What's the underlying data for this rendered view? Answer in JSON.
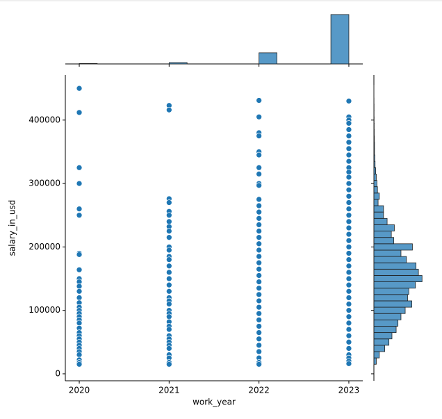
{
  "chart_data": {
    "type": "scatter",
    "x_label": "work_year",
    "y_label": "salary_in_usd",
    "color": "#1f77b4",
    "xlim": [
      2019.845,
      2023.155
    ],
    "xticks": [
      2020,
      2021,
      2022,
      2023
    ],
    "ylim": [
      -11000,
      471000
    ],
    "yticks": [
      0,
      100000,
      200000,
      300000,
      400000
    ],
    "groups": [
      {
        "x": 2020,
        "values": [
          450000,
          412000,
          325000,
          300000,
          260000,
          250000,
          190000,
          188000,
          164000,
          150000,
          145000,
          138000,
          130000,
          120000,
          112000,
          105000,
          100000,
          95000,
          90000,
          85000,
          80000,
          72000,
          65000,
          60000,
          55000,
          50000,
          45000,
          40000,
          35000,
          30000,
          22000,
          18000,
          15000
        ]
      },
      {
        "x": 2021,
        "values": [
          423000,
          416000,
          276000,
          270000,
          256000,
          250000,
          240000,
          232000,
          225000,
          215000,
          200000,
          195000,
          185000,
          180000,
          170000,
          160000,
          150000,
          140000,
          130000,
          120000,
          115000,
          110000,
          100000,
          95000,
          90000,
          82000,
          75000,
          70000,
          60000,
          55000,
          50000,
          45000,
          40000,
          30000,
          25000,
          18000,
          15000
        ]
      },
      {
        "x": 2022,
        "values": [
          431000,
          405000,
          380000,
          375000,
          350000,
          345000,
          325000,
          315000,
          300000,
          297000,
          275000,
          265000,
          255000,
          245000,
          235000,
          225000,
          215000,
          205000,
          195000,
          185000,
          175000,
          165000,
          155000,
          145000,
          135000,
          125000,
          115000,
          105000,
          95000,
          85000,
          75000,
          65000,
          55000,
          45000,
          35000,
          25000,
          18000,
          15000
        ]
      },
      {
        "x": 2023,
        "values": [
          430000,
          405000,
          400000,
          395000,
          385000,
          375000,
          365000,
          355000,
          345000,
          335000,
          325000,
          318000,
          310000,
          300000,
          290000,
          280000,
          270000,
          260000,
          250000,
          240000,
          230000,
          220000,
          210000,
          200000,
          190000,
          180000,
          170000,
          160000,
          150000,
          140000,
          130000,
          120000,
          110000,
          100000,
          90000,
          80000,
          70000,
          60000,
          50000,
          40000,
          30000,
          25000,
          20000,
          16000
        ]
      }
    ],
    "top_histogram": {
      "bins": [
        2020,
        2020.2,
        2020.4,
        2020.6,
        2020.8,
        2021,
        2021.2,
        2021.4,
        2021.6,
        2021.8,
        2022,
        2022.2,
        2022.4,
        2022.6,
        2022.8,
        2023
      ],
      "counts": [
        70,
        0,
        0,
        0,
        0,
        200,
        0,
        0,
        0,
        0,
        1650,
        0,
        0,
        0,
        7300
      ],
      "ylim": [
        0,
        7700
      ]
    },
    "right_histogram": {
      "bins": [
        15000,
        25000,
        35000,
        45000,
        55000,
        65000,
        75000,
        85000,
        95000,
        105000,
        115000,
        125000,
        135000,
        145000,
        155000,
        165000,
        175000,
        185000,
        195000,
        205000,
        215000,
        225000,
        235000,
        245000,
        255000,
        265000,
        275000,
        285000,
        295000,
        305000,
        315000,
        325000,
        335000,
        345000,
        355000,
        365000,
        375000,
        385000,
        395000,
        405000,
        415000,
        425000,
        435000,
        445000,
        455000
      ],
      "counts": [
        40,
        90,
        180,
        250,
        300,
        370,
        400,
        450,
        520,
        630,
        560,
        580,
        690,
        800,
        740,
        700,
        540,
        450,
        640,
        330,
        290,
        340,
        220,
        160,
        160,
        70,
        90,
        60,
        50,
        40,
        30,
        20,
        15,
        10,
        10,
        8,
        6,
        5,
        4,
        3,
        3,
        2,
        1,
        1
      ],
      "xlim": [
        0,
        970
      ]
    }
  }
}
